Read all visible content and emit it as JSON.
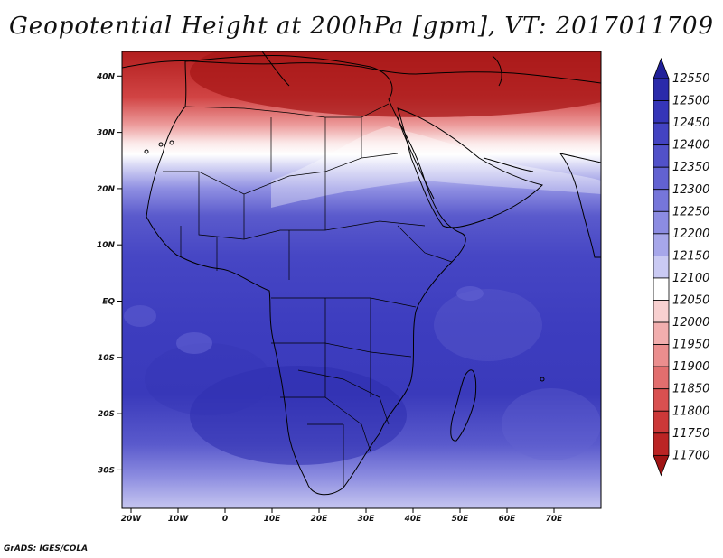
{
  "title": "Geopotential Height at 200hPa [gpm], VT: 2017011709",
  "credit": "GrADS: IGES/COLA",
  "x_ticks": [
    {
      "lon": -20,
      "label": "20W"
    },
    {
      "lon": -10,
      "label": "10W"
    },
    {
      "lon": 0,
      "label": "0"
    },
    {
      "lon": 10,
      "label": "10E"
    },
    {
      "lon": 20,
      "label": "20E"
    },
    {
      "lon": 30,
      "label": "30E"
    },
    {
      "lon": 40,
      "label": "40E"
    },
    {
      "lon": 50,
      "label": "50E"
    },
    {
      "lon": 60,
      "label": "60E"
    },
    {
      "lon": 70,
      "label": "70E"
    }
  ],
  "y_ticks": [
    {
      "lat": 40,
      "label": "40N"
    },
    {
      "lat": 30,
      "label": "30N"
    },
    {
      "lat": 20,
      "label": "20N"
    },
    {
      "lat": 10,
      "label": "10N"
    },
    {
      "lat": 0,
      "label": "EQ"
    },
    {
      "lat": -10,
      "label": "10S"
    },
    {
      "lat": -20,
      "label": "20S"
    },
    {
      "lat": -30,
      "label": "30S"
    }
  ],
  "colorbar": {
    "labels": [
      "12550",
      "12500",
      "12450",
      "12400",
      "12350",
      "12300",
      "12250",
      "12200",
      "12150",
      "12100",
      "12050",
      "12000",
      "11950",
      "11900",
      "11850",
      "11800",
      "11750",
      "11700"
    ],
    "colors": [
      "#20209a",
      "#2a2aaa",
      "#3535b8",
      "#4343c2",
      "#5151c9",
      "#6262d2",
      "#7676da",
      "#8c8ce2",
      "#a7a7ea",
      "#cacaf3",
      "#ffffff",
      "#f8d0d0",
      "#f2aeae",
      "#eb8e8e",
      "#e26e6e",
      "#d95050",
      "#cc3838",
      "#bb2424",
      "#a01414"
    ]
  }
}
